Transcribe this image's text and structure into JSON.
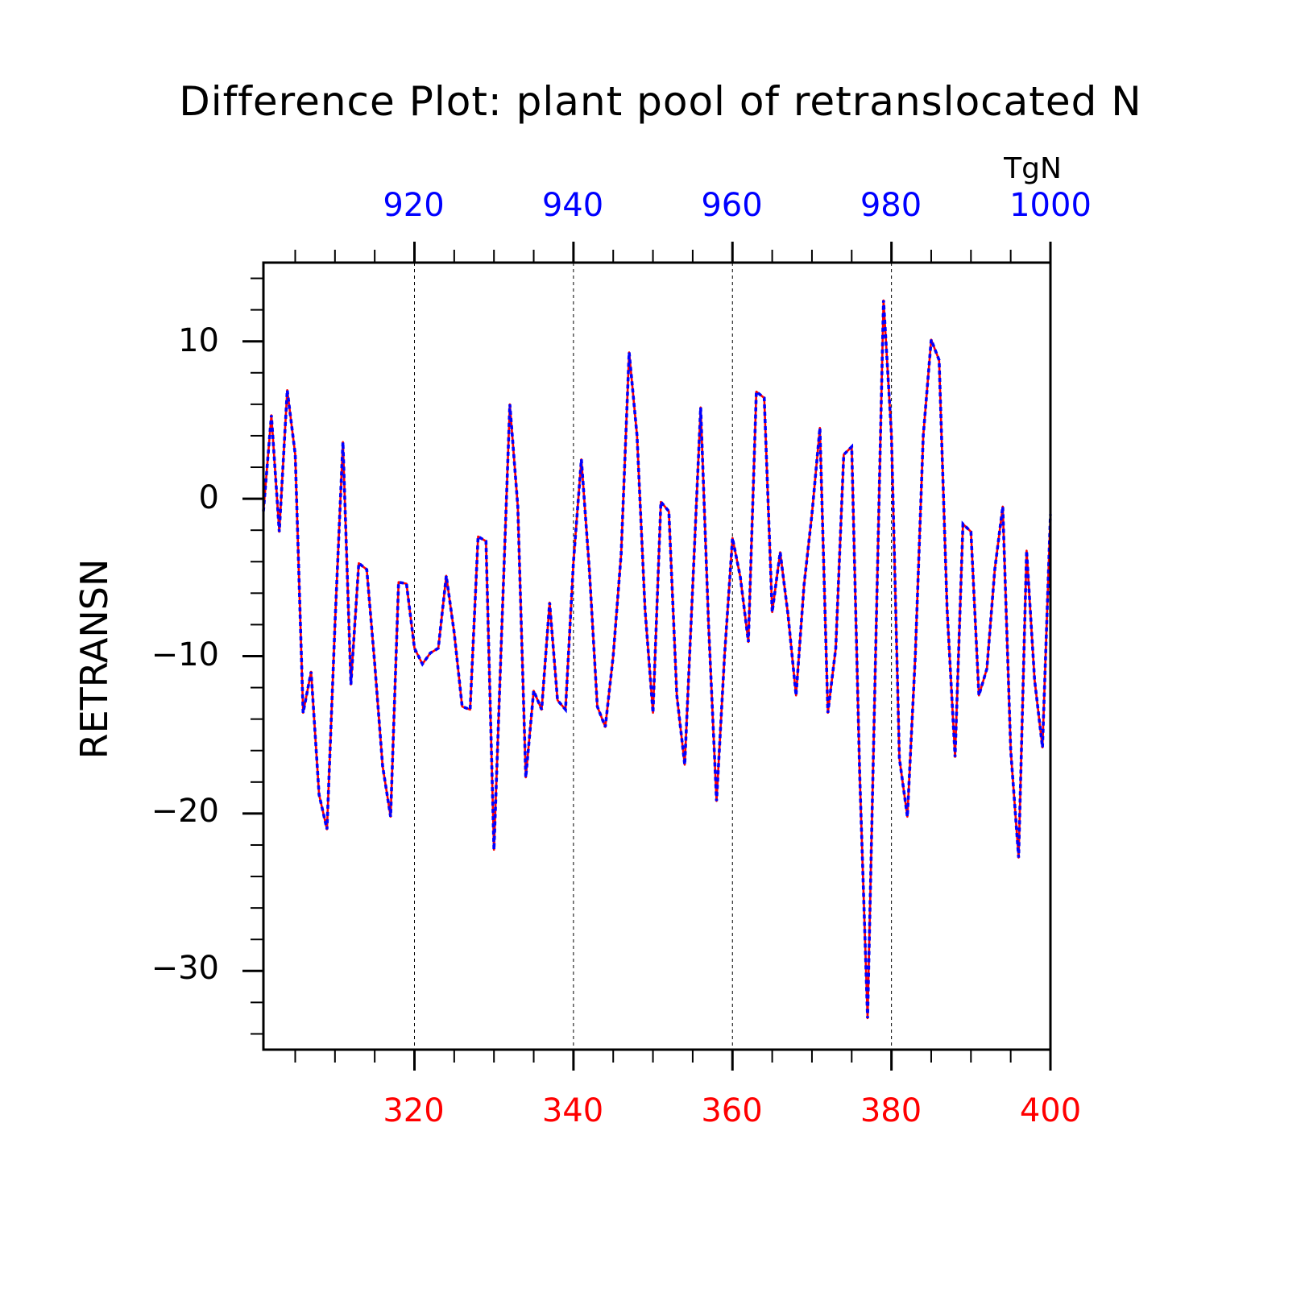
{
  "chart_data": {
    "type": "line",
    "title": "Difference Plot: plant pool of retranslocated N",
    "ylabel": "RETRANSN",
    "units": "TgN",
    "xlim_bottom": [
      301,
      400
    ],
    "xlim_top": [
      901,
      1000
    ],
    "ylim": [
      -35,
      15
    ],
    "bottom_ticks": [
      "320",
      "340",
      "360",
      "380",
      "400"
    ],
    "top_ticks": [
      "920",
      "940",
      "960",
      "980",
      "1000"
    ],
    "y_ticks": [
      "10",
      "0",
      "−10",
      "−20",
      "−30"
    ],
    "grid": "dashed vertical lines at labeled x ticks",
    "colors": {
      "series_bottom": "#ff0000",
      "series_top": "#0000ff",
      "axis": "#000000"
    },
    "x": [
      301,
      302,
      303,
      304,
      305,
      306,
      307,
      308,
      309,
      310,
      311,
      312,
      313,
      314,
      315,
      316,
      317,
      318,
      319,
      320,
      321,
      322,
      323,
      324,
      325,
      326,
      327,
      328,
      329,
      330,
      331,
      332,
      333,
      334,
      335,
      336,
      337,
      338,
      339,
      340,
      341,
      342,
      343,
      344,
      345,
      346,
      347,
      348,
      349,
      350,
      351,
      352,
      353,
      354,
      355,
      356,
      357,
      358,
      359,
      360,
      361,
      362,
      363,
      364,
      365,
      366,
      367,
      368,
      369,
      370,
      371,
      372,
      373,
      374,
      375,
      376,
      377,
      378,
      379,
      380,
      381,
      382,
      383,
      384,
      385,
      386,
      387,
      388,
      389,
      390,
      391,
      392,
      393,
      394,
      395,
      396,
      397,
      398,
      399,
      400
    ],
    "y": [
      -0.8,
      5.3,
      -2.1,
      6.9,
      2.8,
      -13.6,
      -11.0,
      -18.8,
      -21.0,
      -8.0,
      3.6,
      -11.8,
      -4.1,
      -4.5,
      -10.5,
      -17.0,
      -20.2,
      -5.3,
      -5.4,
      -9.5,
      -10.5,
      -9.8,
      -9.5,
      -4.9,
      -8.5,
      -13.2,
      -13.4,
      -2.4,
      -2.7,
      -22.3,
      -8.0,
      6.0,
      -0.5,
      -17.7,
      -12.2,
      -13.4,
      -6.6,
      -12.8,
      -13.4,
      -4.0,
      2.5,
      -4.5,
      -13.2,
      -14.5,
      -10.0,
      -3.5,
      9.3,
      4.0,
      -7.0,
      -13.6,
      -0.2,
      -0.8,
      -12.5,
      -16.9,
      -5.6,
      5.8,
      -8.0,
      -19.2,
      -10.0,
      -2.5,
      -5.0,
      -9.1,
      6.8,
      6.4,
      -7.2,
      -3.4,
      -7.4,
      -12.5,
      -5.5,
      -1.0,
      4.5,
      -13.6,
      -9.5,
      2.8,
      3.3,
      -17.5,
      -33.0,
      -10.0,
      12.6,
      4.1,
      -16.5,
      -20.2,
      -10.0,
      4.0,
      10.1,
      8.8,
      -7.0,
      -16.4,
      -1.6,
      -2.1,
      -12.5,
      -10.8,
      -4.5,
      -0.5,
      -16.0,
      -22.8,
      -3.3,
      -11.5,
      -15.8,
      -1.0
    ]
  }
}
